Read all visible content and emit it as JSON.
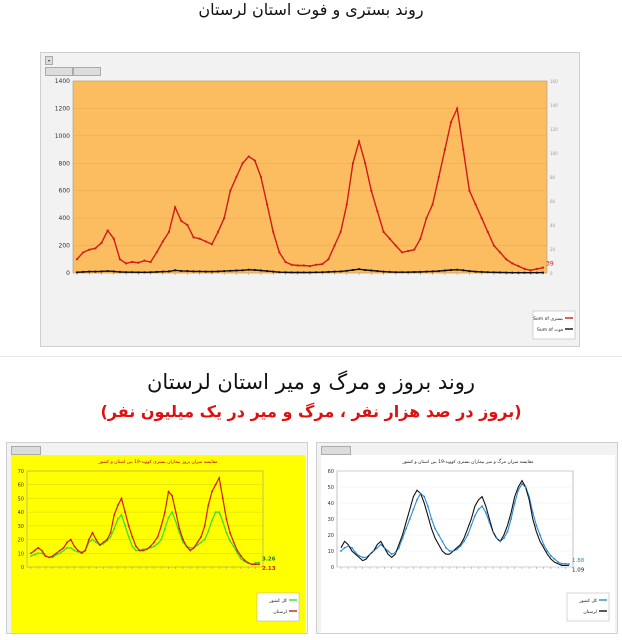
{
  "header": {
    "title1": "روند بستری و فوت استان لرستان",
    "title2": "روند بروز و مرگ و میر استان لرستان",
    "subtitle2": "(بروز در صد هزار نفر ، مرگ و میر در یک میلیون نفر)"
  },
  "colors": {
    "orange_plot": "#fbbd60",
    "yellow_plot": "#ffff00",
    "red_series": "#d11a1a",
    "black_series": "#111111",
    "green_series": "#33dd33",
    "blue_series": "#2e8bd6"
  },
  "chart_data": [
    {
      "type": "line",
      "ylim": [
        0,
        1400
      ],
      "yticks": [
        0,
        200,
        400,
        600,
        800,
        1000,
        1200,
        1400
      ],
      "y2lim": [
        0,
        160
      ],
      "grid": true,
      "legend_position": "right",
      "series": [
        {
          "name": "Sum of بستری",
          "values": [
            100,
            150,
            170,
            180,
            220,
            310,
            250,
            100,
            70,
            80,
            75,
            90,
            80,
            150,
            230,
            300,
            480,
            380,
            350,
            260,
            250,
            230,
            210,
            300,
            400,
            600,
            700,
            800,
            850,
            820,
            700,
            500,
            300,
            150,
            80,
            60,
            55,
            55,
            50,
            60,
            65,
            100,
            200,
            300,
            500,
            800,
            960,
            800,
            600,
            450,
            300,
            250,
            200,
            150,
            160,
            170,
            250,
            400,
            500,
            700,
            900,
            1100,
            1200,
            900,
            600,
            500,
            400,
            300,
            200,
            150,
            100,
            70,
            50,
            30,
            20,
            30,
            39
          ]
        },
        {
          "name": "Sum of فوت",
          "values": [
            5,
            8,
            10,
            10,
            12,
            14,
            12,
            8,
            6,
            6,
            5,
            5,
            6,
            8,
            10,
            12,
            20,
            15,
            14,
            12,
            12,
            10,
            10,
            12,
            14,
            16,
            18,
            20,
            24,
            22,
            18,
            14,
            10,
            6,
            5,
            4,
            4,
            4,
            4,
            5,
            6,
            8,
            10,
            12,
            16,
            22,
            28,
            22,
            18,
            14,
            10,
            8,
            6,
            6,
            6,
            7,
            8,
            10,
            12,
            14,
            18,
            22,
            24,
            20,
            14,
            10,
            8,
            6,
            5,
            4,
            3,
            2,
            2,
            2,
            2,
            2,
            3
          ]
        }
      ],
      "end_label": "39"
    },
    {
      "type": "line",
      "title": "مقایسه میزان بروز بیماران بستری کووید-19 بین استان و کشور",
      "ylim": [
        0,
        70
      ],
      "yticks": [
        0,
        10,
        20,
        30,
        40,
        50,
        60,
        70
      ],
      "grid": true,
      "legend_position": "bottom-right",
      "series": [
        {
          "name": "کل کشور",
          "values": [
            8,
            9,
            10,
            10,
            8,
            7,
            7,
            9,
            10,
            12,
            14,
            14,
            12,
            11,
            11,
            12,
            18,
            20,
            18,
            16,
            17,
            19,
            22,
            28,
            35,
            38,
            30,
            22,
            15,
            12,
            12,
            13,
            13,
            14,
            15,
            17,
            20,
            28,
            36,
            40,
            33,
            25,
            18,
            15,
            14,
            14,
            16,
            18,
            20,
            26,
            34,
            40,
            40,
            33,
            25,
            19,
            15,
            10,
            6,
            4,
            3,
            2,
            3,
            3.26
          ]
        },
        {
          "name": "لرستان",
          "values": [
            10,
            12,
            14,
            12,
            8,
            7,
            8,
            10,
            12,
            14,
            18,
            20,
            15,
            12,
            10,
            12,
            20,
            25,
            20,
            16,
            18,
            20,
            25,
            38,
            45,
            50,
            40,
            30,
            22,
            15,
            12,
            12,
            13,
            15,
            18,
            22,
            30,
            40,
            55,
            52,
            40,
            28,
            20,
            15,
            12,
            14,
            18,
            22,
            30,
            45,
            55,
            60,
            65,
            50,
            35,
            25,
            18,
            12,
            8,
            5,
            3,
            2,
            2,
            2.13
          ]
        }
      ],
      "end_labels": [
        "3.26",
        "2.13"
      ]
    },
    {
      "type": "line",
      "title": "مقایسه میزان مرگ و میر بیماران بستری کووید-19 بین استان و کشور",
      "ylim": [
        0,
        60
      ],
      "yticks": [
        0,
        10,
        20,
        30,
        40,
        50,
        60
      ],
      "grid": true,
      "legend_position": "bottom-right",
      "series": [
        {
          "name": "کل کشور",
          "values": [
            10,
            12,
            13,
            12,
            9,
            7,
            6,
            6,
            8,
            10,
            12,
            14,
            12,
            10,
            8,
            9,
            12,
            18,
            24,
            30,
            36,
            42,
            46,
            44,
            38,
            30,
            24,
            20,
            16,
            12,
            10,
            10,
            11,
            13,
            16,
            20,
            26,
            32,
            36,
            38,
            34,
            28,
            22,
            18,
            16,
            18,
            22,
            30,
            40,
            48,
            52,
            50,
            44,
            34,
            26,
            20,
            14,
            10,
            7,
            5,
            3,
            2,
            2,
            1.88
          ]
        },
        {
          "name": "لرستان",
          "values": [
            12,
            16,
            14,
            10,
            8,
            6,
            4,
            5,
            8,
            10,
            14,
            16,
            12,
            8,
            6,
            8,
            14,
            20,
            28,
            36,
            44,
            48,
            46,
            40,
            32,
            24,
            18,
            14,
            10,
            8,
            8,
            10,
            12,
            14,
            18,
            24,
            30,
            38,
            42,
            44,
            38,
            30,
            22,
            18,
            16,
            20,
            26,
            34,
            44,
            50,
            54,
            50,
            42,
            30,
            22,
            16,
            12,
            8,
            5,
            3,
            2,
            1,
            1,
            1.09
          ]
        }
      ],
      "end_labels": [
        "1.88",
        "1.09"
      ]
    }
  ]
}
